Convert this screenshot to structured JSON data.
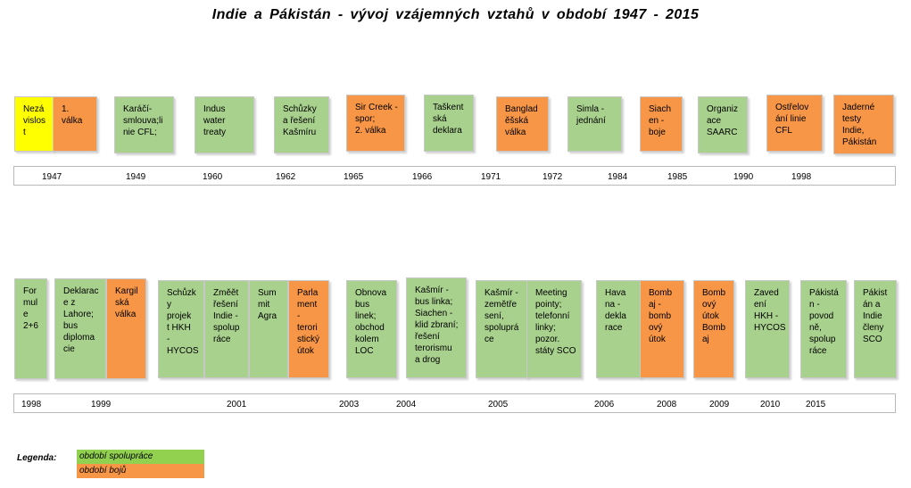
{
  "title": "Indie  a  Pákistán  - vývoj  vzájemných  vztahů  v období  1947  -  2015",
  "row1": {
    "events": [
      {
        "text": "Nezá\nvislos\nt",
        "kind": "cooperation-start"
      },
      {
        "text": "1.\nválka",
        "kind": "conflict"
      },
      {
        "text": "Karáčí-\nsmlouva;li\nnie CFL;",
        "kind": "cooperation"
      },
      {
        "text": "Indus\nwater\ntreaty",
        "kind": "cooperation"
      },
      {
        "text": "Schůzky\na řešení\nKašmíru",
        "kind": "cooperation"
      },
      {
        "text": "Sir Creek -\nspor;\n2. válka",
        "kind": "conflict"
      },
      {
        "text": "Taškent\nská\ndeklara",
        "kind": "cooperation"
      },
      {
        "text": "Banglad\něšská\nválka",
        "kind": "conflict"
      },
      {
        "text": "Simla -\njednání",
        "kind": "cooperation"
      },
      {
        "text": "Siach\nen -\nboje",
        "kind": "conflict"
      },
      {
        "text": "Organiz\nace\nSAARC",
        "kind": "cooperation"
      },
      {
        "text": "Ostřelov\nání linie\nCFL",
        "kind": "conflict"
      },
      {
        "text": "Jaderné\ntesty\nIndie,\nPákistán",
        "kind": "conflict"
      }
    ],
    "years": [
      "1947",
      "1949",
      "1960",
      "1962",
      "1965",
      "1966",
      "1971",
      "1972",
      "1984",
      "1985",
      "1990",
      "1998"
    ]
  },
  "row2": {
    "events": [
      {
        "text": "For\nmul\ne\n2+6",
        "kind": "cooperation"
      },
      {
        "text": "Deklarac\ne z\nLahore;\nbus\ndiploma\ncie",
        "kind": "cooperation"
      },
      {
        "text": "Kargil\nská\nválka",
        "kind": "conflict"
      },
      {
        "text": "Schůzk\ny\nprojek\nt HKH\n-\nHYCOS",
        "kind": "cooperation"
      },
      {
        "text": "Změět\nřešení\nIndie -\nspolup\nráce",
        "kind": "cooperation"
      },
      {
        "text": "Sum\nmit\nAgra",
        "kind": "cooperation"
      },
      {
        "text": "Parla\nment\n-\nterori\nstický\nútok",
        "kind": "conflict"
      },
      {
        "text": "Obnova\nbus\nlinek;\nobchod\nkolem\nLOC",
        "kind": "cooperation"
      },
      {
        "text": "Kašmír -\nbus linka;\nSiachen -\nklid zbraní;\nřešení\nterorismu\na drog",
        "kind": "cooperation"
      },
      {
        "text": "Kašmír -\nzemětře\nsení,\nspoluprá\nce",
        "kind": "cooperation"
      },
      {
        "text": "Meeting\npointy;\ntelefonní\nlinky;\npozor.\nstáty SCO",
        "kind": "cooperation"
      },
      {
        "text": "Hava\nna -\ndekla\nrace",
        "kind": "cooperation"
      },
      {
        "text": "Bomb\naj -\nbomb\nový\nútok",
        "kind": "conflict"
      },
      {
        "text": "Bomb\nový\nútok\nBomb\naj",
        "kind": "conflict"
      },
      {
        "text": "Zaved\není\nHKH -\nHYCOS",
        "kind": "cooperation"
      },
      {
        "text": "Pákistá\nn -\npovod\nně,\nspolup\nráce",
        "kind": "cooperation"
      },
      {
        "text": "Pákist\nán a\nIndie\nčleny\nSCO",
        "kind": "cooperation"
      }
    ],
    "years": [
      "1998",
      "1999",
      "2001",
      "2003",
      "2004",
      "2005",
      "2006",
      "2008",
      "2009",
      "2010",
      "2015"
    ]
  },
  "legend": {
    "label": "Legenda:",
    "cooperation": "období spolupráce",
    "conflict": "období bojů"
  },
  "colors": {
    "cooperation": "#a9d18e",
    "conflict": "#f79646",
    "independence": "#ffff00",
    "legend_cooperation": "#92d050",
    "legend_conflict": "#f79646"
  }
}
